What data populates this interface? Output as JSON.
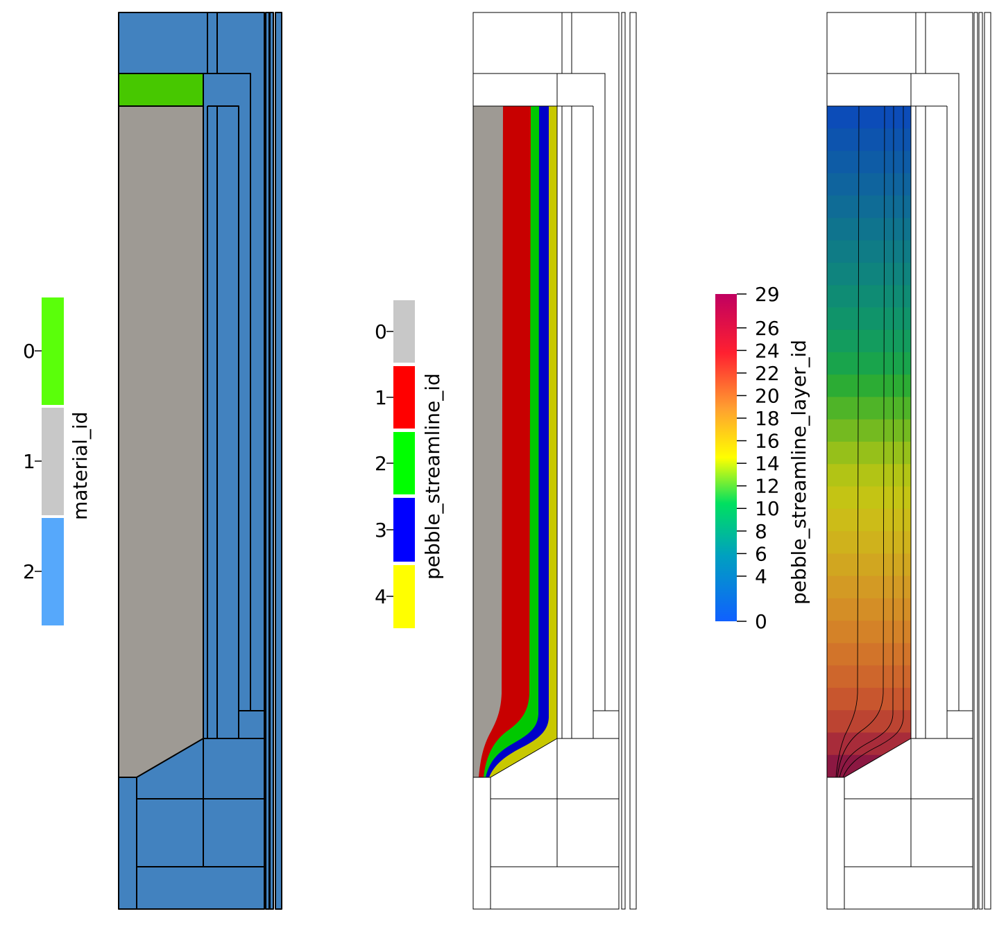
{
  "colors": {
    "fuel_gray": "#9e9a94",
    "structure_blue": "#4282bf",
    "top_green": "#47c800",
    "outline": "#000000"
  },
  "legend_material": {
    "title": "material_id",
    "entries": [
      {
        "label": "0",
        "color": "#5aff0a"
      },
      {
        "label": "1",
        "color": "#c8c8c8"
      },
      {
        "label": "2",
        "color": "#56a8fb"
      }
    ]
  },
  "legend_streamline": {
    "title": "pebble_streamline_id",
    "entries": [
      {
        "label": "0",
        "color": "#c8c8c8"
      },
      {
        "label": "1",
        "color": "#ff0000"
      },
      {
        "label": "2",
        "color": "#00ff00"
      },
      {
        "label": "3",
        "color": "#0000ff"
      },
      {
        "label": "4",
        "color": "#ffff00"
      }
    ]
  },
  "legend_layer": {
    "title": "pebble_streamline_layer_id",
    "range": [
      0,
      29
    ],
    "ticks": [
      "29",
      "26",
      "24",
      "22",
      "20",
      "18",
      "16",
      "14",
      "12",
      "10",
      "8",
      "6",
      "4",
      "0"
    ],
    "tick_values": [
      29,
      26,
      24,
      22,
      20,
      18,
      16,
      14,
      12,
      10,
      8,
      6,
      4,
      0
    ],
    "color_stops": [
      "#1060ff",
      "#00a0c0",
      "#00e060",
      "#ffff00",
      "#ffa030",
      "#ff2030",
      "#c00060"
    ]
  },
  "streamline_colors": [
    "#9e9a94",
    "#c80000",
    "#00c800",
    "#0000c8",
    "#c8c800"
  ],
  "layer_colors": [
    "#0c4cb8",
    "#0d54ae",
    "#0e5ca6",
    "#0f649e",
    "#0f6c96",
    "#0f748e",
    "#0f7c86",
    "#0f847e",
    "#0f8c74",
    "#10946a",
    "#139c5e",
    "#19a44c",
    "#2cac34",
    "#4fb428",
    "#74ba20",
    "#96c01a",
    "#b2c415",
    "#c4c414",
    "#ccbc18",
    "#cfb21c",
    "#d1a620",
    "#d39a24",
    "#d48e26",
    "#d48228",
    "#d2742a",
    "#ce662c",
    "#c8562e",
    "#bc4432",
    "#a82c3a",
    "#8c1842"
  ]
}
